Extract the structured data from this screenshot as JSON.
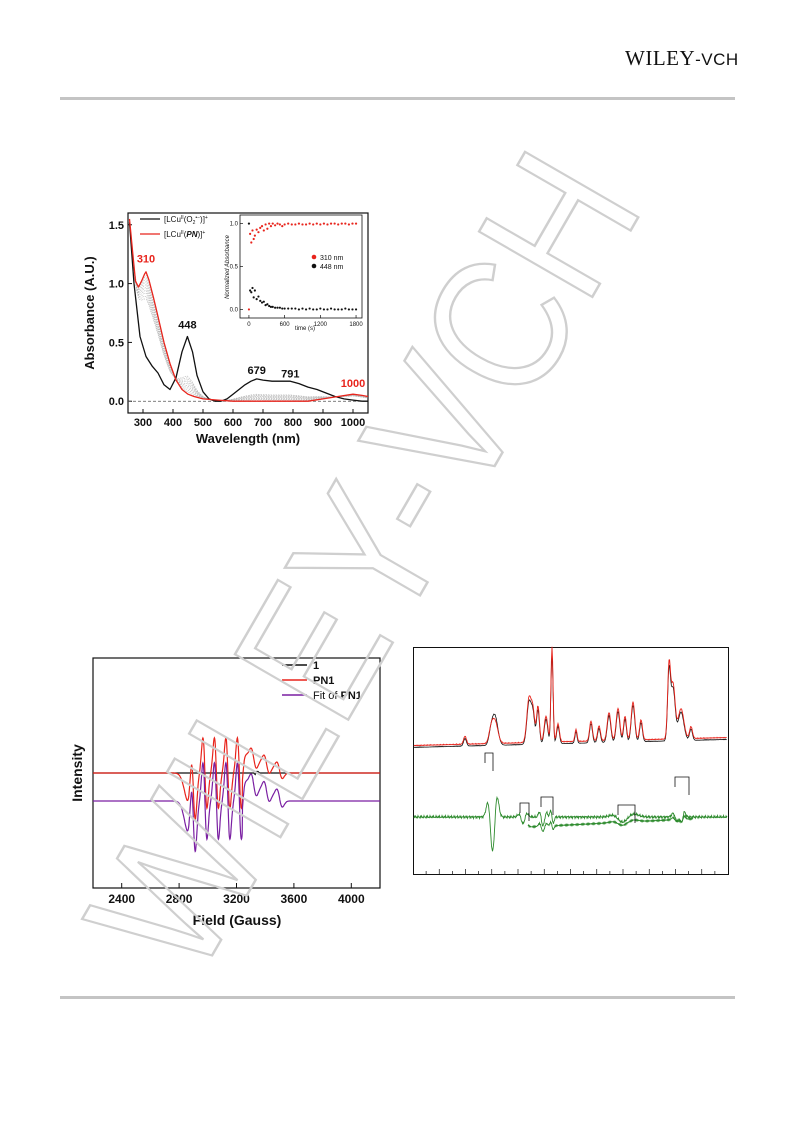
{
  "header": {
    "publisher_a": "WILEY",
    "publisher_b": "-VCH"
  },
  "watermark": "WILEY-VCH",
  "chart_data": [
    {
      "type": "line",
      "xlabel": "Wavelength (nm)",
      "ylabel": "Absorbance (A.U.)",
      "xlim": [
        250,
        1050
      ],
      "ylim": [
        -0.1,
        1.6
      ],
      "xticks": [
        300,
        400,
        500,
        600,
        700,
        800,
        900,
        1000
      ],
      "yticks": [
        0.0,
        0.5,
        1.0,
        1.5
      ],
      "xtick_labels": [
        "300",
        "400",
        "500",
        "600",
        "700",
        "800",
        "900",
        "1000"
      ],
      "ytick_labels": [
        "0.0",
        "0.5",
        "1.0",
        "1.5"
      ],
      "legend": {
        "position": "top-left",
        "entry1_main": "[LCu",
        "entry1_ox": "II",
        "entry1_mid": "(O",
        "entry1_sub": "2",
        "entry1_sup": "•−",
        "entry1_end": ")]",
        "entry1_charge": "+",
        "entry2_main": "[LCu",
        "entry2_ox": "II",
        "entry2_mid": "(",
        "entry2_pn": "PN",
        "entry2_end": ")]",
        "entry2_charge": "+"
      },
      "annotations": [
        {
          "text": "310",
          "x": 310,
          "y": 1.18,
          "color": "#e8241c"
        },
        {
          "text": "448",
          "x": 448,
          "y": 0.62,
          "color": "#111111"
        },
        {
          "text": "679",
          "x": 679,
          "y": 0.23,
          "color": "#111111"
        },
        {
          "text": "791",
          "x": 791,
          "y": 0.2,
          "color": "#111111"
        },
        {
          "text": "1000",
          "x": 1000,
          "y": 0.12,
          "color": "#e8241c"
        }
      ],
      "series": [
        {
          "color": "#111111",
          "x": [
            255,
            270,
            290,
            310,
            330,
            350,
            370,
            390,
            410,
            430,
            448,
            465,
            480,
            500,
            520,
            540,
            560,
            580,
            600,
            620,
            640,
            660,
            679,
            700,
            730,
            760,
            791,
            820,
            850,
            880,
            910,
            940,
            970,
            1000,
            1030,
            1050
          ],
          "y": [
            1.52,
            1.0,
            0.55,
            0.38,
            0.3,
            0.24,
            0.14,
            0.1,
            0.2,
            0.42,
            0.55,
            0.42,
            0.22,
            0.08,
            0.02,
            0.0,
            0.0,
            0.02,
            0.06,
            0.1,
            0.14,
            0.17,
            0.19,
            0.18,
            0.17,
            0.17,
            0.17,
            0.15,
            0.12,
            0.1,
            0.07,
            0.04,
            0.02,
            0.01,
            0.0,
            0.0
          ]
        },
        {
          "color": "#e8241c",
          "x": [
            255,
            265,
            275,
            285,
            295,
            305,
            310,
            320,
            335,
            350,
            370,
            390,
            410,
            430,
            450,
            470,
            500,
            550,
            600,
            700,
            800,
            850,
            900,
            950,
            1000,
            1030,
            1050
          ],
          "y": [
            1.55,
            1.28,
            1.02,
            0.97,
            1.02,
            1.08,
            1.1,
            1.03,
            0.88,
            0.72,
            0.5,
            0.32,
            0.18,
            0.1,
            0.06,
            0.04,
            0.02,
            0.01,
            0.0,
            0.0,
            0.0,
            0.0,
            0.02,
            0.04,
            0.06,
            0.05,
            0.04
          ]
        }
      ],
      "inset": {
        "type": "scatter",
        "xlabel": "time (s)",
        "ylabel": "Normalized Absorbance",
        "xlim": [
          -150,
          1900
        ],
        "ylim": [
          -0.1,
          1.1
        ],
        "xtick_labels": [
          "0",
          "600",
          "1200",
          "1800"
        ],
        "xticks": [
          0,
          600,
          1200,
          1800
        ],
        "ytick_labels": [
          "0.0",
          "0.5",
          "1.0"
        ],
        "yticks": [
          0,
          0.5,
          1.0
        ],
        "series": [
          {
            "name": "310 nm",
            "color": "#e8241c",
            "x": [
              0,
              20,
              40,
              60,
              80,
              100,
              130,
              160,
              190,
              220,
              250,
              280,
              310,
              340,
              370,
              400,
              440,
              480,
              520,
              560,
              600,
              660,
              720,
              780,
              840,
              900,
              960,
              1020,
              1080,
              1140,
              1200,
              1260,
              1320,
              1380,
              1440,
              1500,
              1560,
              1620,
              1680,
              1740,
              1800
            ],
            "y": [
              0.0,
              0.88,
              0.78,
              0.92,
              0.82,
              0.86,
              0.93,
              0.9,
              0.95,
              0.97,
              0.92,
              0.99,
              0.94,
              1.0,
              0.97,
              1.0,
              0.98,
              1.0,
              0.99,
              0.97,
              0.99,
              1.0,
              0.99,
              0.99,
              1.0,
              0.99,
              0.99,
              1.0,
              0.99,
              1.0,
              0.99,
              1.0,
              0.99,
              1.0,
              1.0,
              0.99,
              1.0,
              1.0,
              0.99,
              1.0,
              1.0
            ]
          },
          {
            "name": "448 nm",
            "color": "#111111",
            "x": [
              0,
              20,
              40,
              60,
              80,
              100,
              130,
              160,
              190,
              220,
              250,
              280,
              310,
              340,
              370,
              400,
              440,
              480,
              520,
              560,
              600,
              660,
              720,
              780,
              840,
              900,
              960,
              1020,
              1080,
              1140,
              1200,
              1260,
              1320,
              1380,
              1440,
              1500,
              1560,
              1620,
              1680,
              1740,
              1800
            ],
            "y": [
              1.0,
              0.22,
              0.2,
              0.25,
              0.14,
              0.22,
              0.12,
              0.15,
              0.1,
              0.08,
              0.09,
              0.05,
              0.06,
              0.04,
              0.03,
              0.03,
              0.02,
              0.02,
              0.02,
              0.01,
              0.01,
              0.01,
              0.01,
              0.01,
              0.0,
              0.01,
              0.0,
              0.01,
              0.0,
              0.0,
              0.01,
              0.0,
              0.0,
              0.01,
              0.0,
              0.0,
              0.0,
              0.01,
              0.0,
              0.0,
              0.0
            ]
          }
        ]
      }
    },
    {
      "type": "line",
      "xlabel": "Field (Gauss)",
      "ylabel": "Intensity",
      "xlim": [
        2200,
        4200
      ],
      "xticks": [
        2400,
        2800,
        3200,
        3600,
        4000
      ],
      "xtick_labels": [
        "2400",
        "2800",
        "3200",
        "3600",
        "4000"
      ],
      "legend": {
        "position": "top-right",
        "entries": [
          "1",
          "PN1"
        ],
        "entry3_prefix": "Fit of ",
        "entry3_bold": "PN1"
      },
      "series": [
        {
          "color": "#111111"
        },
        {
          "color": "#e8241c"
        },
        {
          "color": "#7a1fa2"
        }
      ]
    },
    {
      "type": "line",
      "xlabel": "",
      "ylabel": "",
      "series": [
        {
          "color": "#111111"
        },
        {
          "color": "#e8241c"
        },
        {
          "color": "#2e8b2e"
        }
      ]
    }
  ]
}
